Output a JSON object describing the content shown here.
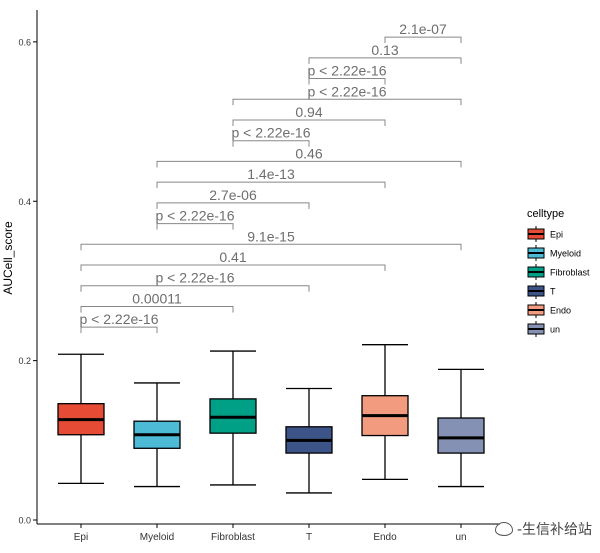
{
  "chart_data": {
    "type": "boxplot",
    "title": "",
    "xlabel": "",
    "ylabel": "AUCell_score",
    "ylim": [
      -0.005,
      0.64
    ],
    "yticks": [
      0.0,
      0.2,
      0.4,
      0.6
    ],
    "ytick_labels": [
      "0.0",
      "0.2",
      "0.4",
      "0.6"
    ],
    "categories": [
      "Epi",
      "Myeloid",
      "Fibroblast",
      "T",
      "Endo",
      "un"
    ],
    "boxes": [
      {
        "name": "Epi",
        "whisker_low": 0.046,
        "q1": 0.107,
        "median": 0.126,
        "q3": 0.146,
        "whisker_high": 0.208,
        "fill": "#E64B35"
      },
      {
        "name": "Myeloid",
        "whisker_low": 0.042,
        "q1": 0.09,
        "median": 0.107,
        "q3": 0.124,
        "whisker_high": 0.172,
        "fill": "#4DBBD5"
      },
      {
        "name": "Fibroblast",
        "whisker_low": 0.044,
        "q1": 0.109,
        "median": 0.129,
        "q3": 0.152,
        "whisker_high": 0.212,
        "fill": "#00A087"
      },
      {
        "name": "T",
        "whisker_low": 0.034,
        "q1": 0.084,
        "median": 0.1,
        "q3": 0.117,
        "whisker_high": 0.165,
        "fill": "#3C5488"
      },
      {
        "name": "Endo",
        "whisker_low": 0.051,
        "q1": 0.106,
        "median": 0.131,
        "q3": 0.156,
        "whisker_high": 0.22,
        "fill": "#F39B7F"
      },
      {
        "name": "un",
        "whisker_low": 0.042,
        "q1": 0.084,
        "median": 0.103,
        "q3": 0.128,
        "whisker_high": 0.189,
        "fill": "#8491B4"
      }
    ],
    "comparisons": [
      {
        "from": "Epi",
        "to": "Myeloid",
        "label": "p < 2.22e-16",
        "y": 0.242
      },
      {
        "from": "Epi",
        "to": "Fibroblast",
        "label": "0.00011",
        "y": 0.268
      },
      {
        "from": "Epi",
        "to": "T",
        "label": "p < 2.22e-16",
        "y": 0.294
      },
      {
        "from": "Epi",
        "to": "Endo",
        "label": "0.41",
        "y": 0.32
      },
      {
        "from": "Epi",
        "to": "un",
        "label": "9.1e-15",
        "y": 0.346
      },
      {
        "from": "Myeloid",
        "to": "Fibroblast",
        "label": "p < 2.22e-16",
        "y": 0.372
      },
      {
        "from": "Myeloid",
        "to": "T",
        "label": "2.7e-06",
        "y": 0.398
      },
      {
        "from": "Myeloid",
        "to": "Endo",
        "label": "1.4e-13",
        "y": 0.424
      },
      {
        "from": "Myeloid",
        "to": "un",
        "label": "0.46",
        "y": 0.45
      },
      {
        "from": "Fibroblast",
        "to": "T",
        "label": "p < 2.22e-16",
        "y": 0.476
      },
      {
        "from": "Fibroblast",
        "to": "Endo",
        "label": "0.94",
        "y": 0.502
      },
      {
        "from": "Fibroblast",
        "to": "un",
        "label": "p < 2.22e-16",
        "y": 0.528
      },
      {
        "from": "T",
        "to": "Endo",
        "label": "p < 2.22e-16",
        "y": 0.554
      },
      {
        "from": "T",
        "to": "un",
        "label": "0.13",
        "y": 0.58
      },
      {
        "from": "Endo",
        "to": "un",
        "label": "2.1e-07",
        "y": 0.606
      }
    ],
    "legend": {
      "title": "celltype",
      "position": "right",
      "entries": [
        {
          "label": "Epi",
          "color": "#E64B35"
        },
        {
          "label": "Myeloid",
          "color": "#4DBBD5"
        },
        {
          "label": "Fibroblast",
          "color": "#00A087"
        },
        {
          "label": "T",
          "color": "#3C5488"
        },
        {
          "label": "Endo",
          "color": "#F39B7F"
        },
        {
          "label": "un",
          "color": "#8491B4"
        }
      ]
    }
  },
  "watermark": {
    "text": "-生信补给站"
  }
}
